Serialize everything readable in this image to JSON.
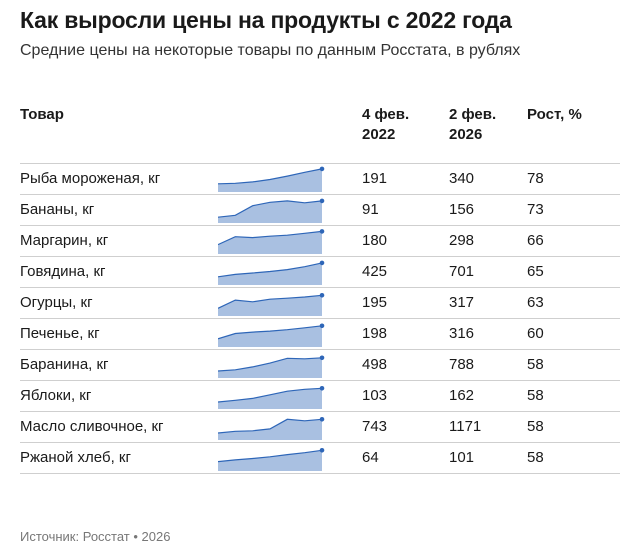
{
  "title": "Как выросли цены на продукты с 2022 года",
  "subtitle": "Средние цены на некоторые товары по данным Росстата, в рублях",
  "source": "Источник: Росстат • 2026",
  "colors": {
    "area": "#a9c0e1",
    "line": "#2e66b8",
    "dot": "#2e66b8",
    "text": "#1a1a1a"
  },
  "chart_data": {
    "type": "table",
    "title": "Как выросли цены на продукты с 2022 года",
    "columns": {
      "item": "Товар",
      "y1_line1": "4 фев.",
      "y1_line2": "2022",
      "y2_line1": "2 фев.",
      "y2_line2": "2026",
      "growth": "Рост, %"
    },
    "sparkline_units": "relative price level, 2022 → 2026 (approximate)",
    "rows": [
      {
        "name": "Рыба мороженая, кг",
        "y2022": "191",
        "y2026": "340",
        "growth": "78",
        "trend": [
          0.3,
          0.32,
          0.38,
          0.48,
          0.62,
          0.78,
          0.92
        ]
      },
      {
        "name": "Бананы, кг",
        "y2022": "91",
        "y2026": "156",
        "growth": "73",
        "trend": [
          0.2,
          0.28,
          0.68,
          0.82,
          0.88,
          0.8,
          0.88
        ]
      },
      {
        "name": "Маргарин, кг",
        "y2022": "180",
        "y2026": "298",
        "growth": "66",
        "trend": [
          0.35,
          0.68,
          0.64,
          0.7,
          0.74,
          0.82,
          0.9
        ]
      },
      {
        "name": "Говядина, кг",
        "y2022": "425",
        "y2026": "701",
        "growth": "65",
        "trend": [
          0.3,
          0.4,
          0.46,
          0.52,
          0.6,
          0.72,
          0.88
        ]
      },
      {
        "name": "Огурцы, кг",
        "y2022": "195",
        "y2026": "317",
        "growth": "63",
        "trend": [
          0.28,
          0.62,
          0.55,
          0.66,
          0.7,
          0.75,
          0.82
        ]
      },
      {
        "name": "Печенье, кг",
        "y2022": "198",
        "y2026": "316",
        "growth": "60",
        "trend": [
          0.3,
          0.52,
          0.58,
          0.62,
          0.68,
          0.76,
          0.84
        ]
      },
      {
        "name": "Баранина, кг",
        "y2022": "498",
        "y2026": "788",
        "growth": "58",
        "trend": [
          0.25,
          0.3,
          0.42,
          0.58,
          0.78,
          0.76,
          0.8
        ]
      },
      {
        "name": "Яблоки, кг",
        "y2022": "103",
        "y2026": "162",
        "growth": "58",
        "trend": [
          0.25,
          0.32,
          0.4,
          0.55,
          0.7,
          0.78,
          0.82
        ]
      },
      {
        "name": "Масло сливочное, кг",
        "y2022": "743",
        "y2026": "1171",
        "growth": "58",
        "trend": [
          0.25,
          0.32,
          0.34,
          0.42,
          0.82,
          0.76,
          0.82
        ]
      },
      {
        "name": "Ржаной хлеб, кг",
        "y2022": "64",
        "y2026": "101",
        "growth": "58",
        "trend": [
          0.35,
          0.42,
          0.48,
          0.55,
          0.64,
          0.72,
          0.82
        ]
      }
    ]
  }
}
